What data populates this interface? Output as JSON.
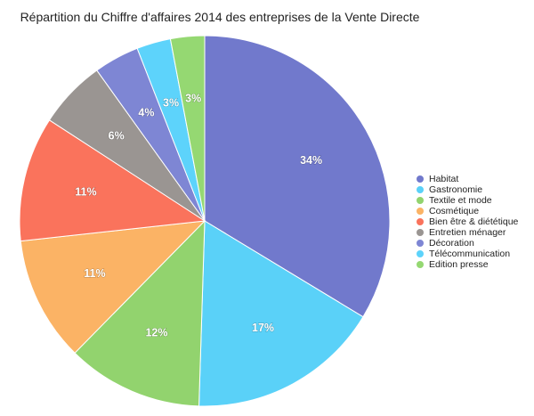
{
  "chart_data": {
    "type": "pie",
    "title": "Répartition du Chiffre d'affaires 2014 des entreprises de la Vente Directe",
    "legend_position": "right",
    "slices": [
      {
        "name": "Habitat",
        "value": 34,
        "label": "34%",
        "color": "#7179cc"
      },
      {
        "name": "Gastronomie",
        "value": 17,
        "label": "17%",
        "color": "#5ad1f8"
      },
      {
        "name": "Textile et mode",
        "value": 12,
        "label": "12%",
        "color": "#92d36e"
      },
      {
        "name": "Cosmétique",
        "value": 11,
        "label": "11%",
        "color": "#fbb365"
      },
      {
        "name": "Bien être & diététique",
        "value": 11,
        "label": "11%",
        "color": "#fa735c"
      },
      {
        "name": "Entretien ménager",
        "value": 6,
        "label": "6%",
        "color": "#9a9592"
      },
      {
        "name": "Décoration",
        "value": 4,
        "label": "4%",
        "color": "#7e86d4"
      },
      {
        "name": "Télécommunication",
        "value": 3,
        "label": "3%",
        "color": "#5dd3fb"
      },
      {
        "name": "Edition presse",
        "value": 3,
        "label": "3%",
        "color": "#95d872"
      }
    ]
  }
}
